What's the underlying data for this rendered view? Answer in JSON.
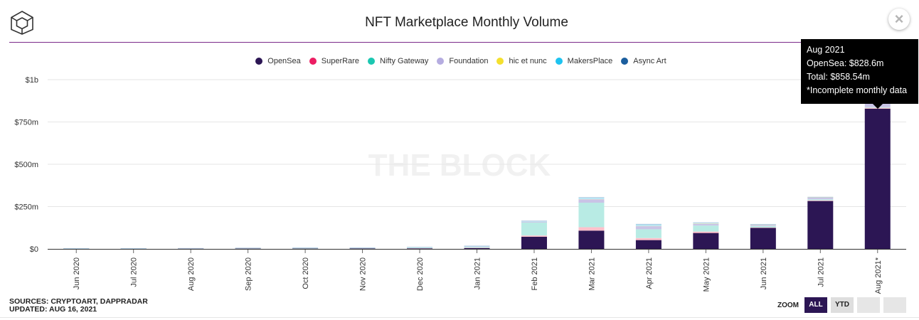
{
  "header": {
    "title": "NFT Marketplace Monthly Volume",
    "close_label": "×"
  },
  "watermark": "THE BLOCK",
  "colors": {
    "OpenSea": "#2c1654",
    "SuperRare": "#ffc0cb",
    "Nifty Gateway": "#b8ebe4",
    "Foundation": "#c9c4e6",
    "hic et nunc": "#f5e6a0",
    "MakersPlace": "#b8e6f5",
    "Async Art": "#9fb8d6",
    "legend_dots": [
      "#2c1654",
      "#ec1e63",
      "#1bc7b1",
      "#b5ace0",
      "#f4e02e",
      "#1ec3f0",
      "#1b5e9e"
    ]
  },
  "chart_data": {
    "type": "bar",
    "stacked": true,
    "title": "NFT Marketplace Monthly Volume",
    "categories": [
      "Jun 2020",
      "Jul 2020",
      "Aug 2020",
      "Sep 2020",
      "Oct 2020",
      "Nov 2020",
      "Dec 2020",
      "Jan 2021",
      "Feb 2021",
      "Mar 2021",
      "Apr 2021",
      "May 2021",
      "Jun 2021",
      "Jul 2021",
      "Aug 2021*"
    ],
    "ylim": [
      0,
      1000
    ],
    "y_unit": "millions USD",
    "y_ticks": [
      "$0",
      "$250m",
      "$500m",
      "$750m",
      "$1b"
    ],
    "legend_position": "top-center",
    "grid": true,
    "series": [
      {
        "name": "OpenSea",
        "values": [
          0.5,
          0.5,
          1,
          1.5,
          1.5,
          2,
          3,
          5,
          72,
          108,
          52,
          94,
          124,
          283,
          828.6
        ]
      },
      {
        "name": "SuperRare",
        "values": [
          0.2,
          0.3,
          0.3,
          0.5,
          0.5,
          0.6,
          1,
          2,
          7,
          20,
          12,
          8,
          3,
          4,
          5
        ]
      },
      {
        "name": "Nifty Gateway",
        "values": [
          0.3,
          0.4,
          0.5,
          1.5,
          2,
          1.5,
          3,
          5,
          77,
          145,
          52,
          36,
          8,
          6,
          4
        ]
      },
      {
        "name": "Foundation",
        "values": [
          0,
          0,
          0,
          0,
          0,
          0,
          0,
          2,
          5,
          20,
          18,
          10,
          6,
          10,
          20
        ]
      },
      {
        "name": "hic et nunc",
        "values": [
          0,
          0,
          0,
          0,
          0,
          0,
          0,
          0,
          0,
          1,
          1,
          2,
          1,
          1,
          1
        ]
      },
      {
        "name": "MakersPlace",
        "values": [
          0.3,
          0.3,
          0.5,
          0.5,
          1,
          1,
          2,
          2,
          3,
          9,
          10,
          4,
          2,
          1,
          0
        ]
      },
      {
        "name": "Async Art",
        "values": [
          0.1,
          0.1,
          0.2,
          0.3,
          0.4,
          0.5,
          0.5,
          0.5,
          0.5,
          1,
          0.5,
          0.5,
          0.5,
          0.5,
          0
        ]
      }
    ]
  },
  "tooltip": {
    "line1": "Aug 2021",
    "line2": "OpenSea: $828.6m",
    "line3": "Total: $858.54m",
    "line4": "*Incomplete monthly data"
  },
  "footer": {
    "sources": "SOURCES: CRYPTOART, DAPPRADAR",
    "updated": "UPDATED: AUG 16, 2021"
  },
  "zoom": {
    "label": "ZOOM",
    "buttons": [
      "ALL",
      "YTD",
      "",
      ""
    ],
    "selected": "ALL"
  }
}
